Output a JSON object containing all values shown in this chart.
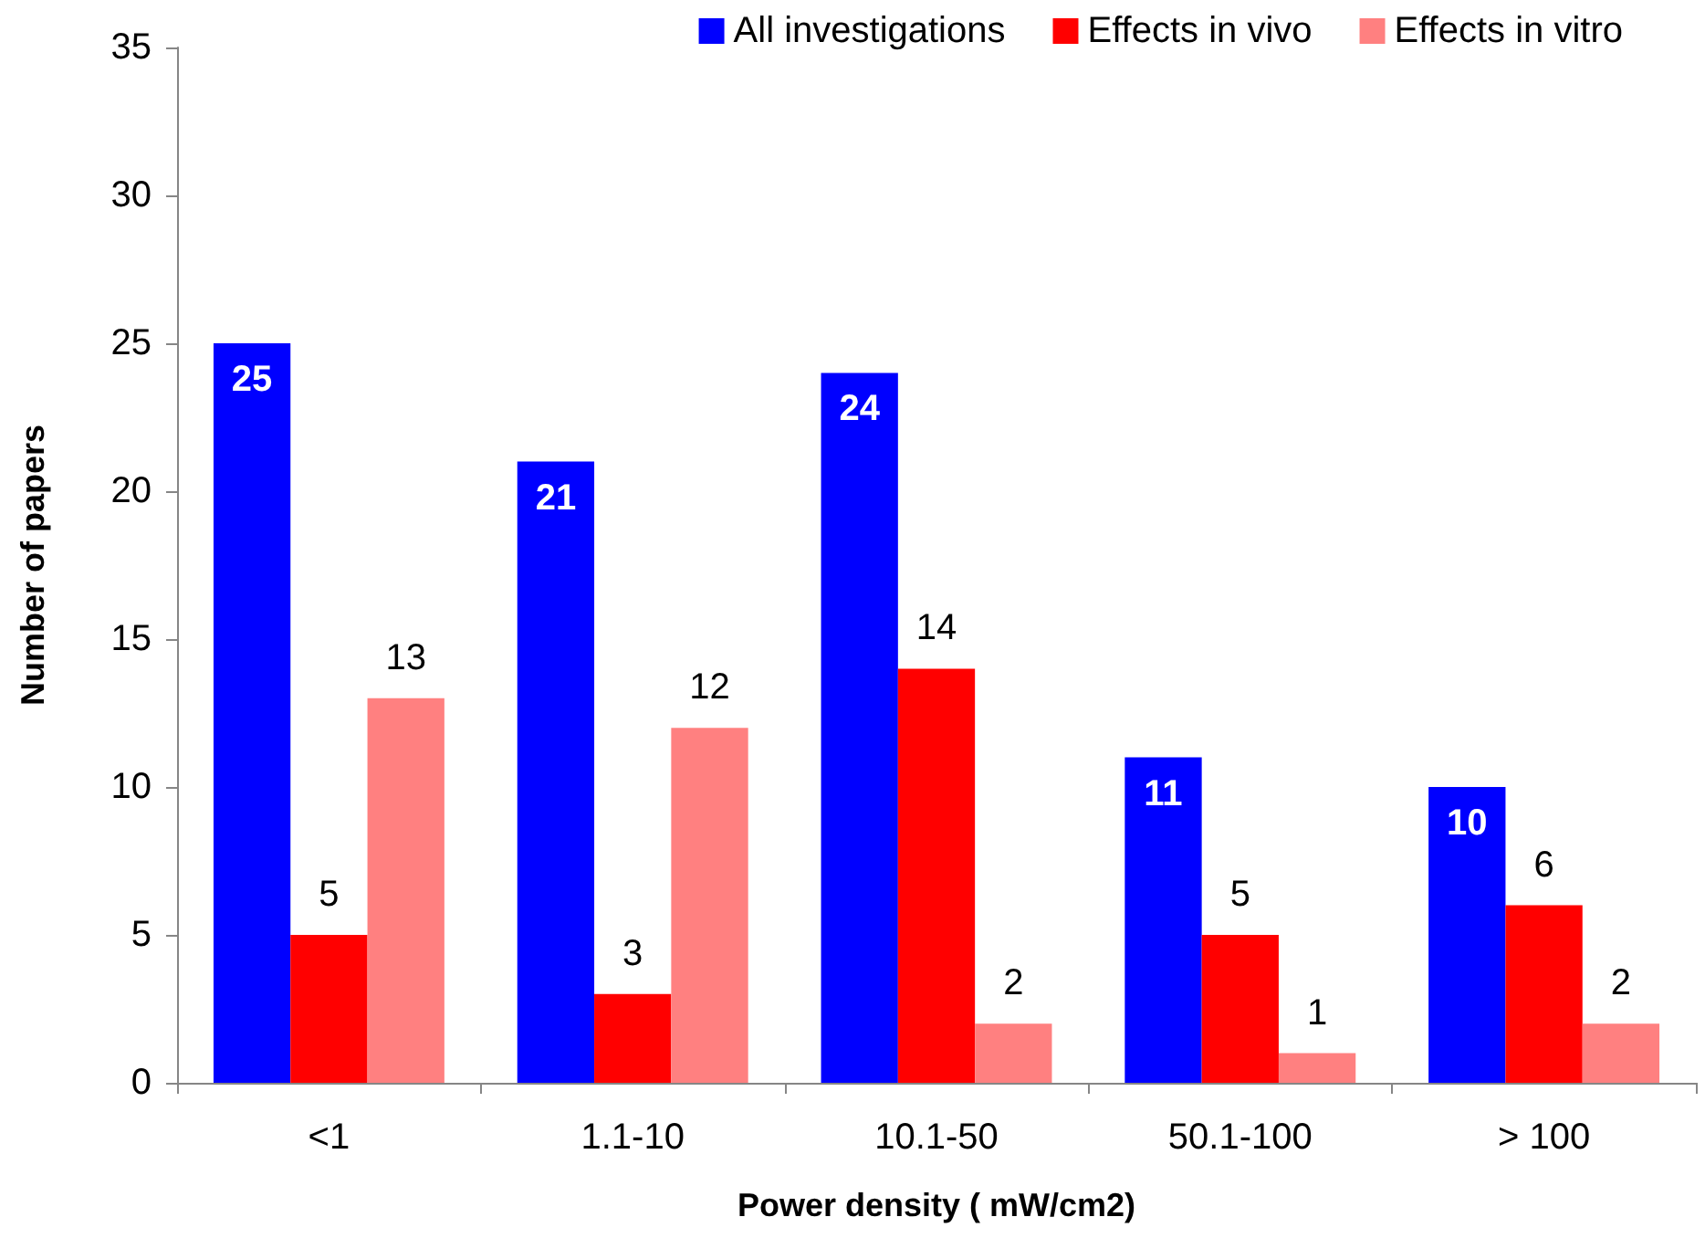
{
  "chart_data": {
    "type": "bar",
    "xlabel": "Power density ( mW/cm2)",
    "ylabel": "Number of papers",
    "categories": [
      "<1",
      "1.1-10",
      "10.1-50",
      "50.1-100",
      "> 100"
    ],
    "series": [
      {
        "name": "All investigations",
        "color": "#0000ff",
        "values": [
          25,
          21,
          24,
          11,
          10
        ]
      },
      {
        "name": "Effects in vivo",
        "color": "#ff0000",
        "values": [
          5,
          3,
          14,
          5,
          6
        ]
      },
      {
        "name": "Effects in vitro",
        "color": "#ff8080",
        "values": [
          13,
          12,
          2,
          1,
          2
        ]
      }
    ],
    "ylim": [
      0,
      35
    ],
    "yticks": [
      0,
      5,
      10,
      15,
      20,
      25,
      30,
      35
    ],
    "grid": false,
    "legend": "top",
    "data_labels": true
  }
}
